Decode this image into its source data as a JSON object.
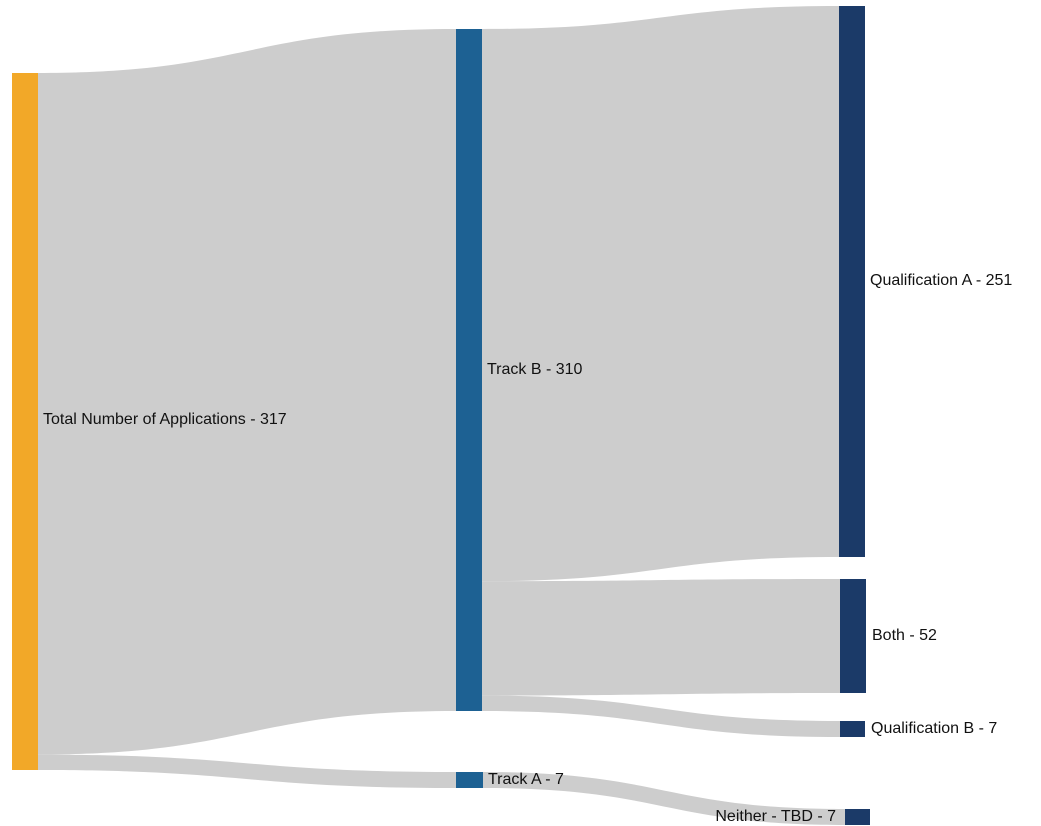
{
  "colors": {
    "background": "#ffffff",
    "link": "#cdcdcd",
    "text": "#111111",
    "nodes": {
      "total": "#f2a828",
      "track": "#1d6193",
      "outcome": "#1b3a68"
    }
  },
  "chart_data": {
    "type": "sankey",
    "title": "",
    "nodes": [
      {
        "id": "total",
        "label": "Total Number of Applications - 317",
        "value": 317,
        "column": 0,
        "color_key": "total"
      },
      {
        "id": "track_b",
        "label": "Track B - 310",
        "value": 310,
        "column": 1,
        "color_key": "track"
      },
      {
        "id": "track_a",
        "label": "Track A - 7",
        "value": 7,
        "column": 1,
        "color_key": "track"
      },
      {
        "id": "qual_a",
        "label": "Qualification A - 251",
        "value": 251,
        "column": 2,
        "color_key": "outcome"
      },
      {
        "id": "both",
        "label": "Both - 52",
        "value": 52,
        "column": 2,
        "color_key": "outcome"
      },
      {
        "id": "qual_b",
        "label": "Qualification B - 7",
        "value": 7,
        "column": 2,
        "color_key": "outcome"
      },
      {
        "id": "neither",
        "label": "Neither - TBD - 7",
        "value": 7,
        "column": 2,
        "color_key": "outcome"
      }
    ],
    "links": [
      {
        "source": "total",
        "target": "track_b",
        "value": 310
      },
      {
        "source": "total",
        "target": "track_a",
        "value": 7
      },
      {
        "source": "track_b",
        "target": "qual_a",
        "value": 251
      },
      {
        "source": "track_b",
        "target": "both",
        "value": 52
      },
      {
        "source": "track_b",
        "target": "qual_b",
        "value": 7
      },
      {
        "source": "track_a",
        "target": "neither",
        "value": 7
      }
    ]
  }
}
